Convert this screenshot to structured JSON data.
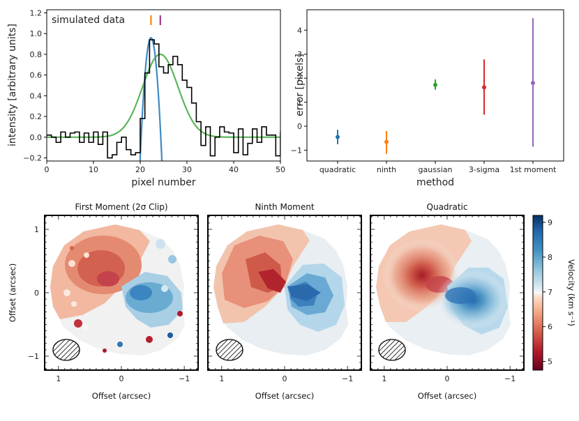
{
  "chart_data": [
    {
      "id": "spectrum",
      "type": "line",
      "annotation": "simulated data",
      "xlabel": "pixel number",
      "ylabel": "intensity [arbitrary units]",
      "xlim": [
        0,
        50
      ],
      "ylim": [
        -0.23,
        1.23
      ],
      "xticks": [
        0,
        10,
        20,
        30,
        40,
        50
      ],
      "yticks": [
        -0.2,
        0.0,
        0.2,
        0.4,
        0.6,
        0.8,
        1.0,
        1.2
      ],
      "markers": [
        {
          "x": 22.3,
          "color": "#ff7f0e"
        },
        {
          "x": 24.3,
          "color": "#9e3a8c"
        }
      ],
      "series": [
        {
          "name": "data",
          "style": "steps",
          "color": "#000000",
          "values": [
            0.02,
            0.0,
            -0.05,
            0.05,
            0.0,
            0.04,
            0.05,
            -0.05,
            0.04,
            -0.05,
            0.05,
            -0.07,
            0.05,
            -0.2,
            -0.17,
            -0.05,
            0.0,
            -0.12,
            -0.17,
            -0.15,
            0.18,
            0.62,
            0.94,
            0.9,
            0.68,
            0.62,
            0.7,
            0.78,
            0.7,
            0.55,
            0.48,
            0.33,
            0.15,
            -0.08,
            0.1,
            -0.18,
            0.0,
            0.1,
            0.05,
            0.04,
            -0.15,
            0.08,
            -0.17,
            -0.06,
            0.08,
            -0.05,
            0.1,
            0.02,
            0.02,
            -0.18,
            0.05
          ]
        },
        {
          "name": "gaussian fit",
          "style": "curve",
          "color": "#5ab55a",
          "amp": 0.8,
          "mu": 24.3,
          "sigma": 3.8
        },
        {
          "name": "quadratic fit",
          "style": "curve",
          "color": "#3d8ac4",
          "amp": 0.96,
          "mu": 22.3,
          "halfwidth": 2.1
        }
      ]
    },
    {
      "id": "errors",
      "type": "scatter",
      "xlabel": "method",
      "ylabel": "error [pixels]",
      "categories": [
        "quadratic",
        "ninth",
        "gaussian",
        "3-sigma",
        "1st moment"
      ],
      "values": [
        -0.45,
        -0.65,
        1.72,
        1.62,
        1.8
      ],
      "err_low": [
        -0.75,
        -1.15,
        1.52,
        0.48,
        -0.85
      ],
      "err_high": [
        -0.15,
        -0.2,
        1.95,
        2.78,
        4.5
      ],
      "colors": [
        "#1f77b4",
        "#ff7f0e",
        "#2ca02c",
        "#d62728",
        "#9467bd"
      ],
      "ylim": [
        -1.45,
        4.85
      ],
      "yticks": [
        -1,
        0,
        1,
        2,
        3,
        4
      ]
    },
    {
      "id": "maps",
      "type": "heatmap",
      "panels": [
        {
          "title": "First Moment (2σ Clip)"
        },
        {
          "title": "Ninth Moment"
        },
        {
          "title": "Quadratic"
        }
      ],
      "xlabel": "Offset (arcsec)",
      "ylabel": "Offset (arcsec)",
      "xlim": [
        1.22,
        -1.22
      ],
      "ylim": [
        -1.22,
        1.22
      ],
      "ticks": [
        1,
        0,
        -1
      ],
      "colorbar": {
        "label": "Velocity  (km s⁻¹)",
        "min": 4.75,
        "max": 9.2,
        "ticks": [
          5,
          6,
          7,
          8,
          9
        ]
      }
    }
  ]
}
